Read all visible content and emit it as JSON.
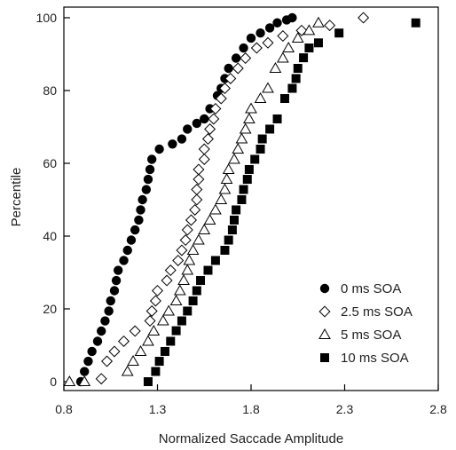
{
  "chart_data": {
    "type": "scatter",
    "title": "",
    "xlabel": "Normalized Saccade Amplitude",
    "ylabel": "Percentile",
    "xlim": [
      0.8,
      2.8
    ],
    "ylim": [
      0,
      100
    ],
    "xticks": [
      "0.8",
      "1.3",
      "1.8",
      "2.3",
      "2.8"
    ],
    "yticks": [
      "0",
      "20",
      "40",
      "60",
      "80",
      "100"
    ],
    "grid": false,
    "legend": "lower-right",
    "series": [
      {
        "name": "0 ms SOA",
        "marker": "filled-circle",
        "color": "#000000",
        "points": [
          [
            0.89,
            0
          ],
          [
            0.91,
            2.8
          ],
          [
            0.93,
            5.6
          ],
          [
            0.95,
            8.3
          ],
          [
            0.98,
            11.1
          ],
          [
            1.0,
            13.9
          ],
          [
            1.02,
            16.7
          ],
          [
            1.04,
            19.4
          ],
          [
            1.05,
            22.2
          ],
          [
            1.07,
            25.0
          ],
          [
            1.08,
            27.8
          ],
          [
            1.09,
            30.6
          ],
          [
            1.12,
            33.3
          ],
          [
            1.14,
            36.1
          ],
          [
            1.16,
            38.9
          ],
          [
            1.18,
            41.7
          ],
          [
            1.2,
            44.4
          ],
          [
            1.21,
            47.2
          ],
          [
            1.22,
            50.0
          ],
          [
            1.24,
            52.8
          ],
          [
            1.25,
            55.6
          ],
          [
            1.26,
            58.3
          ],
          [
            1.27,
            61.1
          ],
          [
            1.31,
            63.9
          ],
          [
            1.38,
            65.3
          ],
          [
            1.43,
            66.7
          ],
          [
            1.46,
            69.4
          ],
          [
            1.51,
            71.0
          ],
          [
            1.55,
            72.2
          ],
          [
            1.58,
            75.0
          ],
          [
            1.62,
            78.6
          ],
          [
            1.64,
            80.6
          ],
          [
            1.66,
            83.3
          ],
          [
            1.68,
            86.1
          ],
          [
            1.72,
            88.9
          ],
          [
            1.76,
            91.7
          ],
          [
            1.8,
            94.4
          ],
          [
            1.85,
            95.8
          ],
          [
            1.9,
            97.2
          ],
          [
            1.94,
            98.6
          ],
          [
            1.99,
            99.4
          ],
          [
            2.02,
            100
          ]
        ]
      },
      {
        "name": "2.5 ms SOA",
        "marker": "open-diamond",
        "color": "#000000",
        "points": [
          [
            1.0,
            0.8
          ],
          [
            1.03,
            5.6
          ],
          [
            1.07,
            8.3
          ],
          [
            1.12,
            11.1
          ],
          [
            1.18,
            13.9
          ],
          [
            1.26,
            16.7
          ],
          [
            1.27,
            19.4
          ],
          [
            1.29,
            22.2
          ],
          [
            1.3,
            25.0
          ],
          [
            1.35,
            27.8
          ],
          [
            1.37,
            30.6
          ],
          [
            1.41,
            33.3
          ],
          [
            1.43,
            36.1
          ],
          [
            1.45,
            38.9
          ],
          [
            1.46,
            41.7
          ],
          [
            1.48,
            44.4
          ],
          [
            1.5,
            47.2
          ],
          [
            1.51,
            50.0
          ],
          [
            1.51,
            52.8
          ],
          [
            1.52,
            55.6
          ],
          [
            1.52,
            58.3
          ],
          [
            1.55,
            61.1
          ],
          [
            1.55,
            63.9
          ],
          [
            1.57,
            66.7
          ],
          [
            1.58,
            69.4
          ],
          [
            1.6,
            72.2
          ],
          [
            1.61,
            75.0
          ],
          [
            1.64,
            77.8
          ],
          [
            1.66,
            80.6
          ],
          [
            1.69,
            83.3
          ],
          [
            1.73,
            86.1
          ],
          [
            1.77,
            88.9
          ],
          [
            1.83,
            91.7
          ],
          [
            1.89,
            93.1
          ],
          [
            1.97,
            95.0
          ],
          [
            2.07,
            96.5
          ],
          [
            2.22,
            97.9
          ],
          [
            2.4,
            100
          ]
        ]
      },
      {
        "name": "5 ms SOA",
        "marker": "open-triangle",
        "color": "#000000",
        "points": [
          [
            0.83,
            0
          ],
          [
            0.91,
            0
          ],
          [
            1.14,
            2.8
          ],
          [
            1.17,
            5.6
          ],
          [
            1.21,
            8.3
          ],
          [
            1.25,
            11.1
          ],
          [
            1.28,
            13.9
          ],
          [
            1.33,
            16.7
          ],
          [
            1.36,
            19.4
          ],
          [
            1.4,
            22.2
          ],
          [
            1.42,
            25.0
          ],
          [
            1.44,
            27.8
          ],
          [
            1.46,
            30.6
          ],
          [
            1.47,
            33.3
          ],
          [
            1.49,
            36.1
          ],
          [
            1.52,
            38.9
          ],
          [
            1.55,
            41.7
          ],
          [
            1.58,
            44.4
          ],
          [
            1.61,
            47.2
          ],
          [
            1.64,
            50.0
          ],
          [
            1.66,
            52.8
          ],
          [
            1.67,
            55.6
          ],
          [
            1.68,
            58.3
          ],
          [
            1.71,
            61.1
          ],
          [
            1.73,
            63.9
          ],
          [
            1.75,
            66.7
          ],
          [
            1.77,
            69.4
          ],
          [
            1.79,
            72.2
          ],
          [
            1.8,
            75.0
          ],
          [
            1.85,
            77.8
          ],
          [
            1.89,
            80.6
          ],
          [
            1.93,
            86.1
          ],
          [
            1.97,
            88.9
          ],
          [
            2.0,
            91.7
          ],
          [
            2.05,
            94.4
          ],
          [
            2.11,
            96.5
          ],
          [
            2.16,
            98.6
          ]
        ]
      },
      {
        "name": "10 ms SOA",
        "marker": "filled-square",
        "color": "#000000",
        "points": [
          [
            1.25,
            0
          ],
          [
            1.29,
            2.8
          ],
          [
            1.31,
            5.6
          ],
          [
            1.34,
            8.3
          ],
          [
            1.37,
            11.1
          ],
          [
            1.4,
            14.0
          ],
          [
            1.43,
            16.7
          ],
          [
            1.46,
            19.4
          ],
          [
            1.49,
            22.2
          ],
          [
            1.51,
            25.0
          ],
          [
            1.53,
            27.8
          ],
          [
            1.57,
            30.6
          ],
          [
            1.61,
            33.3
          ],
          [
            1.66,
            36.1
          ],
          [
            1.68,
            38.9
          ],
          [
            1.7,
            41.7
          ],
          [
            1.71,
            44.4
          ],
          [
            1.72,
            47.2
          ],
          [
            1.75,
            50.0
          ],
          [
            1.76,
            52.8
          ],
          [
            1.78,
            55.6
          ],
          [
            1.79,
            58.3
          ],
          [
            1.82,
            61.1
          ],
          [
            1.85,
            63.9
          ],
          [
            1.86,
            66.7
          ],
          [
            1.9,
            69.4
          ],
          [
            1.94,
            72.2
          ],
          [
            1.98,
            77.8
          ],
          [
            2.02,
            80.6
          ],
          [
            2.04,
            83.3
          ],
          [
            2.05,
            86.1
          ],
          [
            2.08,
            89.0
          ],
          [
            2.11,
            91.7
          ],
          [
            2.16,
            93.1
          ],
          [
            2.27,
            95.8
          ],
          [
            2.68,
            98.6
          ]
        ]
      }
    ]
  }
}
